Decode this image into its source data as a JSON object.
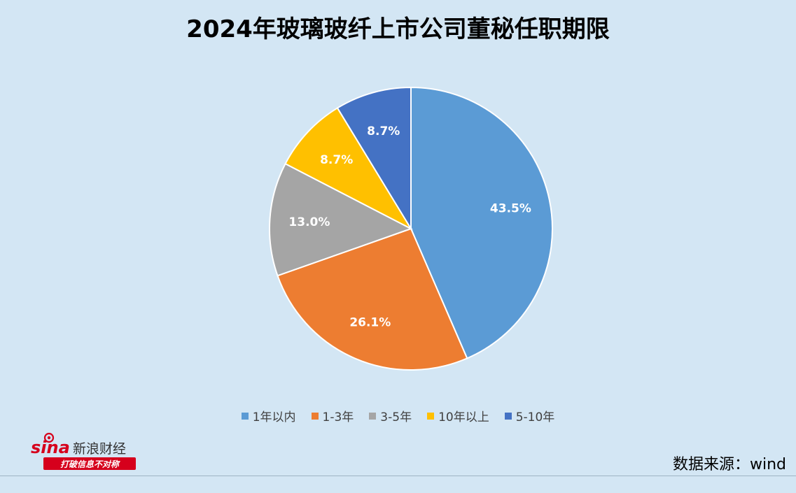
{
  "chart_data": {
    "type": "pie",
    "title": "2024年玻璃玻纤上市公司董秘任职期限",
    "slices": [
      {
        "label": "1年以内",
        "value": 43.5,
        "display": "43.5%",
        "color": "#5b9bd5"
      },
      {
        "label": "1-3年",
        "value": 26.1,
        "display": "26.1%",
        "color": "#ed7d31"
      },
      {
        "label": "3-5年",
        "value": 13.0,
        "display": "13.0%",
        "color": "#a5a5a5"
      },
      {
        "label": "10年以上",
        "value": 8.7,
        "display": "8.7%",
        "color": "#ffc000"
      },
      {
        "label": "5-10年",
        "value": 8.7,
        "display": "8.7%",
        "color": "#4472c4"
      }
    ],
    "legend_position": "bottom"
  },
  "logo": {
    "brand": "sina",
    "name": "新浪财经",
    "slogan": "打破信息不对称"
  },
  "source": "数据来源：wind"
}
